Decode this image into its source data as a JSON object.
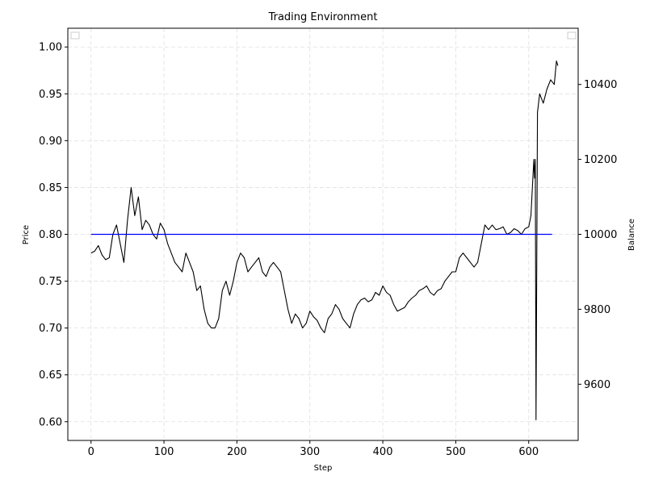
{
  "chart_data": {
    "type": "line",
    "title": "Trading Environment",
    "xlabel": "Step",
    "ylabel_left": "Price",
    "ylabel_right": "Balance",
    "xlim": [
      -31.8,
      667.8
    ],
    "ylim_left": [
      0.58,
      1.02
    ],
    "ylim_right": [
      9450,
      10550
    ],
    "x_ticks": [
      0,
      100,
      200,
      300,
      400,
      500,
      600
    ],
    "y_ticks_left": [
      0.6,
      0.65,
      0.7,
      0.75,
      0.8,
      0.85,
      0.9,
      0.95,
      1.0
    ],
    "y_ticks_left_labels": [
      "0.60",
      "0.65",
      "0.70",
      "0.75",
      "0.80",
      "0.85",
      "0.90",
      "0.95",
      "1.00"
    ],
    "y_ticks_right": [
      9600,
      9800,
      10000,
      10200,
      10400
    ],
    "grid": true,
    "legend": [
      "top-left",
      "top-right"
    ],
    "series": [
      {
        "axis": "left",
        "color": "#000000",
        "x": [
          0,
          5,
          10,
          15,
          20,
          25,
          30,
          35,
          40,
          45,
          50,
          55,
          60,
          65,
          70,
          75,
          80,
          85,
          90,
          95,
          100,
          105,
          110,
          115,
          120,
          125,
          130,
          135,
          140,
          145,
          150,
          155,
          160,
          165,
          170,
          175,
          180,
          185,
          190,
          195,
          200,
          205,
          210,
          215,
          220,
          225,
          230,
          235,
          240,
          245,
          250,
          255,
          260,
          265,
          270,
          275,
          280,
          285,
          290,
          295,
          300,
          305,
          310,
          315,
          320,
          325,
          330,
          335,
          340,
          345,
          350,
          355,
          360,
          365,
          370,
          375,
          380,
          385,
          390,
          395,
          400,
          405,
          410,
          415,
          420,
          425,
          430,
          435,
          440,
          445,
          450,
          455,
          460,
          465,
          470,
          475,
          480,
          485,
          490,
          495,
          500,
          505,
          510,
          515,
          520,
          525,
          530,
          535,
          540,
          545,
          550,
          555,
          560,
          565,
          570,
          575,
          580,
          585,
          590,
          595,
          600,
          603,
          605,
          607,
          608,
          609,
          610,
          612,
          615,
          620,
          625,
          630,
          635,
          638,
          640
        ],
        "values": [
          0.78,
          0.782,
          0.788,
          0.778,
          0.773,
          0.775,
          0.8,
          0.81,
          0.79,
          0.77,
          0.815,
          0.85,
          0.82,
          0.84,
          0.805,
          0.815,
          0.81,
          0.8,
          0.795,
          0.812,
          0.805,
          0.79,
          0.78,
          0.77,
          0.765,
          0.76,
          0.78,
          0.77,
          0.76,
          0.74,
          0.745,
          0.72,
          0.705,
          0.7,
          0.7,
          0.71,
          0.74,
          0.75,
          0.735,
          0.75,
          0.77,
          0.78,
          0.775,
          0.76,
          0.765,
          0.77,
          0.775,
          0.76,
          0.755,
          0.765,
          0.77,
          0.765,
          0.76,
          0.74,
          0.72,
          0.705,
          0.715,
          0.71,
          0.7,
          0.705,
          0.718,
          0.712,
          0.708,
          0.7,
          0.695,
          0.71,
          0.715,
          0.725,
          0.72,
          0.71,
          0.705,
          0.7,
          0.715,
          0.725,
          0.73,
          0.732,
          0.728,
          0.73,
          0.738,
          0.735,
          0.745,
          0.738,
          0.735,
          0.725,
          0.718,
          0.72,
          0.722,
          0.728,
          0.732,
          0.735,
          0.74,
          0.742,
          0.745,
          0.738,
          0.735,
          0.74,
          0.742,
          0.75,
          0.755,
          0.76,
          0.76,
          0.775,
          0.78,
          0.775,
          0.77,
          0.765,
          0.77,
          0.79,
          0.81,
          0.805,
          0.81,
          0.805,
          0.806,
          0.808,
          0.8,
          0.802,
          0.806,
          0.804,
          0.8,
          0.806,
          0.808,
          0.82,
          0.85,
          0.88,
          0.86,
          0.88,
          0.602,
          0.93,
          0.95,
          0.94,
          0.955,
          0.965,
          0.96,
          0.985,
          0.98
        ],
        "marks": {
          "peak_price": {
            "x": 52,
            "value": 0.86
          },
          "dip_price": {
            "x": 172,
            "value": 0.681
          },
          "spike_down": {
            "x": 608,
            "value": 0.602
          },
          "max_price": {
            "x": 640,
            "value": 1.0
          }
        }
      },
      {
        "axis": "right",
        "color": "#0000ff",
        "x": [
          0,
          632
        ],
        "values": [
          10000,
          10000
        ]
      }
    ]
  }
}
